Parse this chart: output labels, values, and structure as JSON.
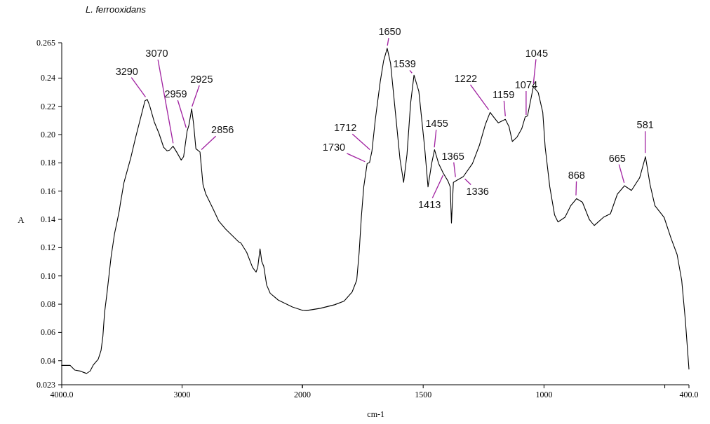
{
  "chart_data": [
    {
      "type": "line",
      "title": "L. ferrooxidans",
      "ylabel": "A",
      "xlim": [
        4000,
        2000
      ],
      "xticks": [
        {
          "value": 4000,
          "label": "4000.0"
        },
        3000,
        {
          "value": 2000,
          "label": null
        }
      ],
      "ylim": [
        0.023,
        0.265
      ],
      "yticks": [
        0.023,
        0.04,
        0.06,
        0.08,
        {
          "value": 0.1,
          "label": "0.10"
        },
        0.12,
        0.14,
        0.16,
        0.18,
        {
          "value": 0.2,
          "label": "0.20"
        },
        0.22,
        0.24,
        0.265
      ],
      "grid": false,
      "marker": "none",
      "line_style": "solid",
      "series": [
        {
          "color": "#000000",
          "x": [
            4000,
            3930,
            3891,
            3843,
            3794,
            3765,
            3736,
            3697,
            3673,
            3658,
            3644,
            3625,
            3590,
            3561,
            3541,
            3522,
            3513,
            3483,
            3425,
            3386,
            3347,
            3308,
            3289,
            3270,
            3231,
            3192,
            3153,
            3124,
            3104,
            3075,
            3045,
            3007,
            2987,
            2958,
            2943,
            2920,
            2904,
            2885,
            2851,
            2826,
            2803,
            2745,
            2696,
            2638,
            2589,
            2531,
            2511,
            2463,
            2414,
            2385,
            2371,
            2352,
            2337,
            2321,
            2297,
            2268,
            2200,
            2083,
            2000
          ],
          "values": [
            0.0367,
            0.0367,
            0.0334,
            0.0326,
            0.031,
            0.0326,
            0.0372,
            0.041,
            0.0474,
            0.0573,
            0.074,
            0.087,
            0.1134,
            0.13,
            0.138,
            0.146,
            0.151,
            0.166,
            0.184,
            0.198,
            0.211,
            0.224,
            0.2248,
            0.2207,
            0.209,
            0.2009,
            0.191,
            0.1885,
            0.189,
            0.1918,
            0.1877,
            0.182,
            0.1844,
            0.2025,
            0.2067,
            0.2182,
            0.2075,
            0.19,
            0.1877,
            0.1646,
            0.158,
            0.148,
            0.139,
            0.1332,
            0.1291,
            0.1242,
            0.1233,
            0.1167,
            0.106,
            0.1027,
            0.106,
            0.1192,
            0.11,
            0.1068,
            0.0936,
            0.0878,
            0.0829,
            0.078,
            0.0757
          ]
        }
      ],
      "annotations": [
        {
          "text": "3290",
          "x": 3290,
          "y": 0.225
        },
        {
          "text": "3070",
          "x": 3070,
          "y": 0.192
        },
        {
          "text": "2959",
          "x": 2959,
          "y": 0.203
        },
        {
          "text": "2925",
          "x": 2925,
          "y": 0.218
        },
        {
          "text": "2856",
          "x": 2856,
          "y": 0.188
        }
      ]
    },
    {
      "type": "line",
      "xlabel": "cm-1",
      "xlim": [
        2000,
        400
      ],
      "xticks": [
        2000,
        1500,
        1000,
        {
          "value": 500,
          "label": null
        },
        {
          "value": 400,
          "label": "400.0"
        }
      ],
      "ylim": [
        0.023,
        0.265
      ],
      "tick_labels": "x",
      "grid": false,
      "marker": "none",
      "line_style": "solid",
      "series": [
        {
          "color": "#000000",
          "x": [
            2000,
            1983,
            1925,
            1867,
            1828,
            1794,
            1775,
            1765,
            1756,
            1746,
            1732,
            1722,
            1712,
            1698,
            1678,
            1664,
            1649,
            1635,
            1615,
            1596,
            1581,
            1567,
            1552,
            1538,
            1518,
            1509,
            1494,
            1480,
            1465,
            1453,
            1436,
            1417,
            1397,
            1388,
            1383,
            1375,
            1358,
            1334,
            1296,
            1267,
            1242,
            1223,
            1208,
            1189,
            1160,
            1145,
            1131,
            1111,
            1092,
            1078,
            1068,
            1044,
            1024,
            1005,
            995,
            976,
            956,
            942,
            913,
            889,
            865,
            841,
            812,
            792,
            754,
            725,
            696,
            667,
            638,
            604,
            580,
            561,
            541,
            503,
            474,
            449,
            430,
            415,
            400
          ],
          "values": [
            0.0757,
            0.0755,
            0.0771,
            0.0796,
            0.0821,
            0.0887,
            0.097,
            0.1167,
            0.1415,
            0.163,
            0.1795,
            0.1803,
            0.1885,
            0.2108,
            0.2372,
            0.252,
            0.2611,
            0.2504,
            0.2157,
            0.1827,
            0.1662,
            0.186,
            0.2223,
            0.2421,
            0.2306,
            0.2157,
            0.191,
            0.163,
            0.1795,
            0.1893,
            0.1795,
            0.1728,
            0.167,
            0.163,
            0.1374,
            0.1662,
            0.1679,
            0.1703,
            0.1795,
            0.1926,
            0.2075,
            0.2157,
            0.2124,
            0.2083,
            0.2108,
            0.2058,
            0.1951,
            0.1984,
            0.2042,
            0.2124,
            0.2133,
            0.2339,
            0.2298,
            0.2157,
            0.191,
            0.163,
            0.1431,
            0.1382,
            0.1415,
            0.1498,
            0.1547,
            0.1522,
            0.1398,
            0.1357,
            0.1415,
            0.144,
            0.158,
            0.1638,
            0.1605,
            0.1695,
            0.1844,
            0.1646,
            0.1498,
            0.1415,
            0.1266,
            0.1151,
            0.0969,
            0.0689,
            0.034
          ]
        }
      ],
      "annotations": [
        {
          "text": "1730",
          "x": 1730,
          "y": 0.18
        },
        {
          "text": "1712",
          "x": 1712,
          "y": 0.188
        },
        {
          "text": "1650",
          "x": 1650,
          "y": 0.261
        },
        {
          "text": "1539",
          "x": 1539,
          "y": 0.242
        },
        {
          "text": "1455",
          "x": 1455,
          "y": 0.189
        },
        {
          "text": "1413",
          "x": 1413,
          "y": 0.173
        },
        {
          "text": "1365",
          "x": 1365,
          "y": 0.168
        },
        {
          "text": "1336",
          "x": 1336,
          "y": 0.17
        },
        {
          "text": "1222",
          "x": 1222,
          "y": 0.216
        },
        {
          "text": "1159",
          "x": 1159,
          "y": 0.211
        },
        {
          "text": "1074",
          "x": 1074,
          "y": 0.212
        },
        {
          "text": "1045",
          "x": 1045,
          "y": 0.234
        },
        {
          "text": "868",
          "x": 868,
          "y": 0.155
        },
        {
          "text": "665",
          "x": 665,
          "y": 0.164
        },
        {
          "text": "581",
          "x": 581,
          "y": 0.185
        }
      ]
    }
  ]
}
